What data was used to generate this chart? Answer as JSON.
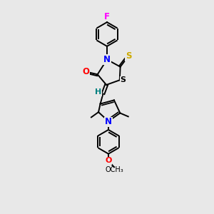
{
  "bg_color": "#e8e8e8",
  "bond_color": "#000000",
  "N_color": "#0000ff",
  "O_color": "#ff0000",
  "S_color": "#ccaa00",
  "F_color": "#ff00ff",
  "H_color": "#008080",
  "lw": 1.4,
  "fs": 8.5,
  "xlim": [
    -1.2,
    1.4
  ],
  "ylim": [
    -3.5,
    3.2
  ]
}
